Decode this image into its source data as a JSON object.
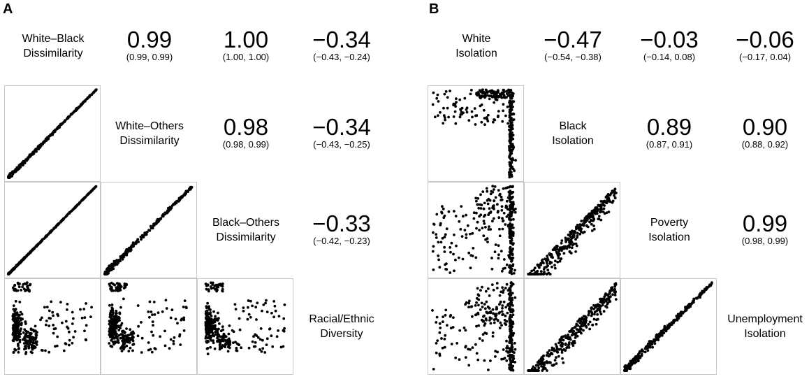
{
  "panels": [
    {
      "letter": "A",
      "variables": [
        {
          "line1": "White–Black",
          "line2": "Dissimilarity"
        },
        {
          "line1": "White–Others",
          "line2": "Dissimilarity"
        },
        {
          "line1": "Black–Others",
          "line2": "Dissimilarity"
        },
        {
          "line1": "Racial/Ethnic",
          "line2": "Diversity"
        }
      ],
      "correlations": [
        {
          "row": 0,
          "col": 1,
          "r": "0.99",
          "ci": "(0.99, 0.99)"
        },
        {
          "row": 0,
          "col": 2,
          "r": "1.00",
          "ci": "(1.00, 1.00)"
        },
        {
          "row": 0,
          "col": 3,
          "r": "−0.34",
          "ci": "(−0.43, −0.24)"
        },
        {
          "row": 1,
          "col": 2,
          "r": "0.98",
          "ci": "(0.98, 0.99)"
        },
        {
          "row": 1,
          "col": 3,
          "r": "−0.34",
          "ci": "(−0.43, −0.25)"
        },
        {
          "row": 2,
          "col": 3,
          "r": "−0.33",
          "ci": "(−0.42, −0.23)"
        }
      ]
    },
    {
      "letter": "B",
      "variables": [
        {
          "line1": "White",
          "line2": "Isolation"
        },
        {
          "line1": "Black",
          "line2": "Isolation"
        },
        {
          "line1": "Poverty",
          "line2": "Isolation"
        },
        {
          "line1": "Unemployment",
          "line2": "Isolation"
        }
      ],
      "correlations": [
        {
          "row": 0,
          "col": 1,
          "r": "−0.47",
          "ci": "(−0.54, −0.38)"
        },
        {
          "row": 0,
          "col": 2,
          "r": "−0.03",
          "ci": "(−0.14, 0.08)"
        },
        {
          "row": 0,
          "col": 3,
          "r": "−0.06",
          "ci": "(−0.17, 0.04)"
        },
        {
          "row": 1,
          "col": 2,
          "r": "0.89",
          "ci": "(0.87, 0.91)"
        },
        {
          "row": 1,
          "col": 3,
          "r": "0.90",
          "ci": "(0.88, 0.92)"
        },
        {
          "row": 2,
          "col": 3,
          "r": "0.99",
          "ci": "(0.98, 0.99)"
        }
      ]
    }
  ],
  "chart_data": [
    {
      "type": "scatter",
      "title": "A",
      "subtype": "scatterplot-matrix",
      "variables": [
        "White–Black Dissimilarity",
        "White–Others Dissimilarity",
        "Black–Others Dissimilarity",
        "Racial/Ethnic Diversity"
      ],
      "correlations": [
        {
          "x": "White–Black Dissimilarity",
          "y": "White–Others Dissimilarity",
          "r": 0.99,
          "ci": [
            0.99,
            0.99
          ]
        },
        {
          "x": "White–Black Dissimilarity",
          "y": "Black–Others Dissimilarity",
          "r": 1.0,
          "ci": [
            1.0,
            1.0
          ]
        },
        {
          "x": "White–Black Dissimilarity",
          "y": "Racial/Ethnic Diversity",
          "r": -0.34,
          "ci": [
            -0.43,
            -0.24
          ]
        },
        {
          "x": "White–Others Dissimilarity",
          "y": "Black–Others Dissimilarity",
          "r": 0.98,
          "ci": [
            0.98,
            0.99
          ]
        },
        {
          "x": "White–Others Dissimilarity",
          "y": "Racial/Ethnic Diversity",
          "r": -0.34,
          "ci": [
            -0.43,
            -0.25
          ]
        },
        {
          "x": "Black–Others Dissimilarity",
          "y": "Racial/Ethnic Diversity",
          "r": -0.33,
          "ci": [
            -0.42,
            -0.23
          ]
        }
      ],
      "scatter_cells": [
        {
          "row": 1,
          "col": 0,
          "pattern": "linear",
          "spread": 0.015
        },
        {
          "row": 2,
          "col": 0,
          "pattern": "linear",
          "spread": 0.006
        },
        {
          "row": 2,
          "col": 1,
          "pattern": "linear",
          "spread": 0.025
        },
        {
          "row": 3,
          "col": 0,
          "pattern": "diversity"
        },
        {
          "row": 3,
          "col": 1,
          "pattern": "diversity"
        },
        {
          "row": 3,
          "col": 2,
          "pattern": "diversity"
        }
      ]
    },
    {
      "type": "scatter",
      "title": "B",
      "subtype": "scatterplot-matrix",
      "variables": [
        "White Isolation",
        "Black Isolation",
        "Poverty Isolation",
        "Unemployment Isolation"
      ],
      "correlations": [
        {
          "x": "White Isolation",
          "y": "Black Isolation",
          "r": -0.47,
          "ci": [
            -0.54,
            -0.38
          ]
        },
        {
          "x": "White Isolation",
          "y": "Poverty Isolation",
          "r": -0.03,
          "ci": [
            -0.14,
            0.08
          ]
        },
        {
          "x": "White Isolation",
          "y": "Unemployment Isolation",
          "r": -0.06,
          "ci": [
            -0.17,
            0.04
          ]
        },
        {
          "x": "Black Isolation",
          "y": "Poverty Isolation",
          "r": 0.89,
          "ci": [
            0.87,
            0.91
          ]
        },
        {
          "x": "Black Isolation",
          "y": "Unemployment Isolation",
          "r": 0.9,
          "ci": [
            0.88,
            0.92
          ]
        },
        {
          "x": "Poverty Isolation",
          "y": "Unemployment Isolation",
          "r": 0.99,
          "ci": [
            0.98,
            0.99
          ]
        }
      ],
      "scatter_cells": [
        {
          "row": 1,
          "col": 0,
          "pattern": "white-black"
        },
        {
          "row": 2,
          "col": 0,
          "pattern": "white-spread"
        },
        {
          "row": 2,
          "col": 1,
          "pattern": "wedge"
        },
        {
          "row": 3,
          "col": 0,
          "pattern": "white-spread"
        },
        {
          "row": 3,
          "col": 1,
          "pattern": "wedge"
        },
        {
          "row": 3,
          "col": 2,
          "pattern": "linear",
          "spread": 0.035
        }
      ]
    }
  ]
}
